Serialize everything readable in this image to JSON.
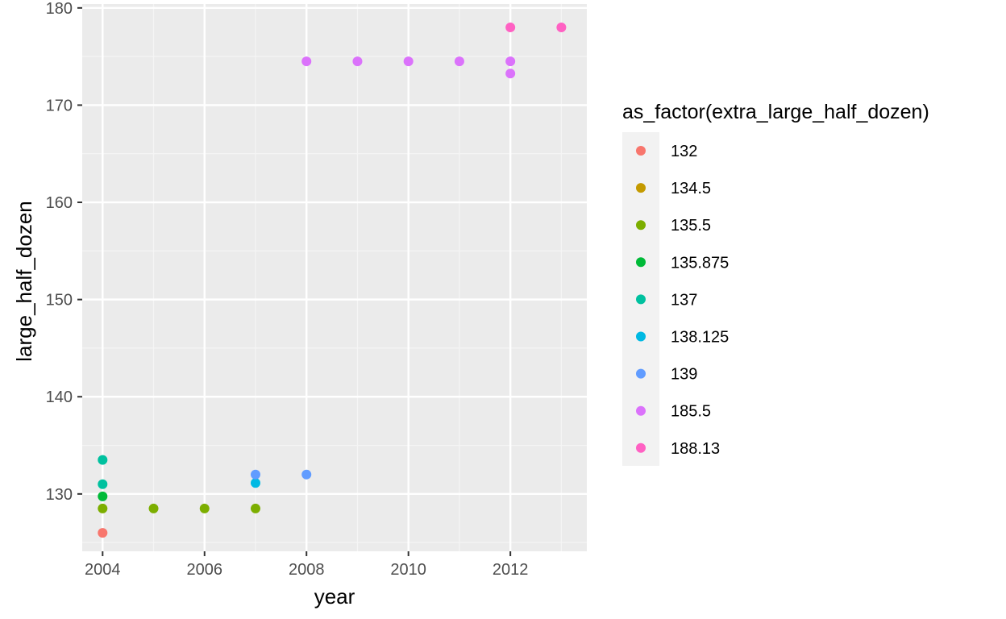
{
  "chart_data": {
    "type": "scatter",
    "title": "",
    "xlabel": "year",
    "ylabel": "large_half_dozen",
    "xlim": [
      2003.6,
      2013.5
    ],
    "ylim": [
      124.1,
      180.4
    ],
    "x_ticks": [
      2004,
      2006,
      2008,
      2010,
      2012
    ],
    "y_ticks": [
      130,
      140,
      150,
      160,
      170,
      180
    ],
    "grid": true,
    "panel_background": "#ebebeb",
    "legend": {
      "title": "as_factor(extra_large_half_dozen)",
      "placement": "right",
      "entries": [
        {
          "label": "132",
          "color": "#f8766d"
        },
        {
          "label": "134.5",
          "color": "#c49a00"
        },
        {
          "label": "135.5",
          "color": "#7cae00"
        },
        {
          "label": "135.875",
          "color": "#00ba38"
        },
        {
          "label": "137",
          "color": "#00c19f"
        },
        {
          "label": "138.125",
          "color": "#00b9e3"
        },
        {
          "label": "139",
          "color": "#619cff"
        },
        {
          "label": "185.5",
          "color": "#db72fb"
        },
        {
          "label": "188.13",
          "color": "#ff61c3"
        }
      ]
    },
    "series": [
      {
        "group": "132",
        "color": "#f8766d",
        "points": [
          [
            2004,
            126.0
          ]
        ]
      },
      {
        "group": "135.5",
        "color": "#7cae00",
        "points": [
          [
            2004,
            128.5
          ],
          [
            2005,
            128.5
          ],
          [
            2006,
            128.5
          ],
          [
            2007,
            128.5
          ]
        ]
      },
      {
        "group": "135.875",
        "color": "#00ba38",
        "points": [
          [
            2004,
            129.75
          ]
        ]
      },
      {
        "group": "137",
        "color": "#00c19f",
        "points": [
          [
            2004,
            131.0
          ],
          [
            2004,
            133.5
          ]
        ]
      },
      {
        "group": "138.125",
        "color": "#00b9e3",
        "points": [
          [
            2007,
            131.125
          ]
        ]
      },
      {
        "group": "139",
        "color": "#619cff",
        "points": [
          [
            2007,
            132.0
          ],
          [
            2008,
            132.0
          ]
        ]
      },
      {
        "group": "185.5",
        "color": "#db72fb",
        "points": [
          [
            2008,
            174.5
          ],
          [
            2009,
            174.5
          ],
          [
            2010,
            174.5
          ],
          [
            2011,
            174.5
          ],
          [
            2012,
            174.5
          ],
          [
            2012,
            173.25
          ]
        ]
      },
      {
        "group": "188.13",
        "color": "#ff61c3",
        "points": [
          [
            2012,
            178.0
          ],
          [
            2013,
            178.0
          ]
        ]
      }
    ]
  }
}
